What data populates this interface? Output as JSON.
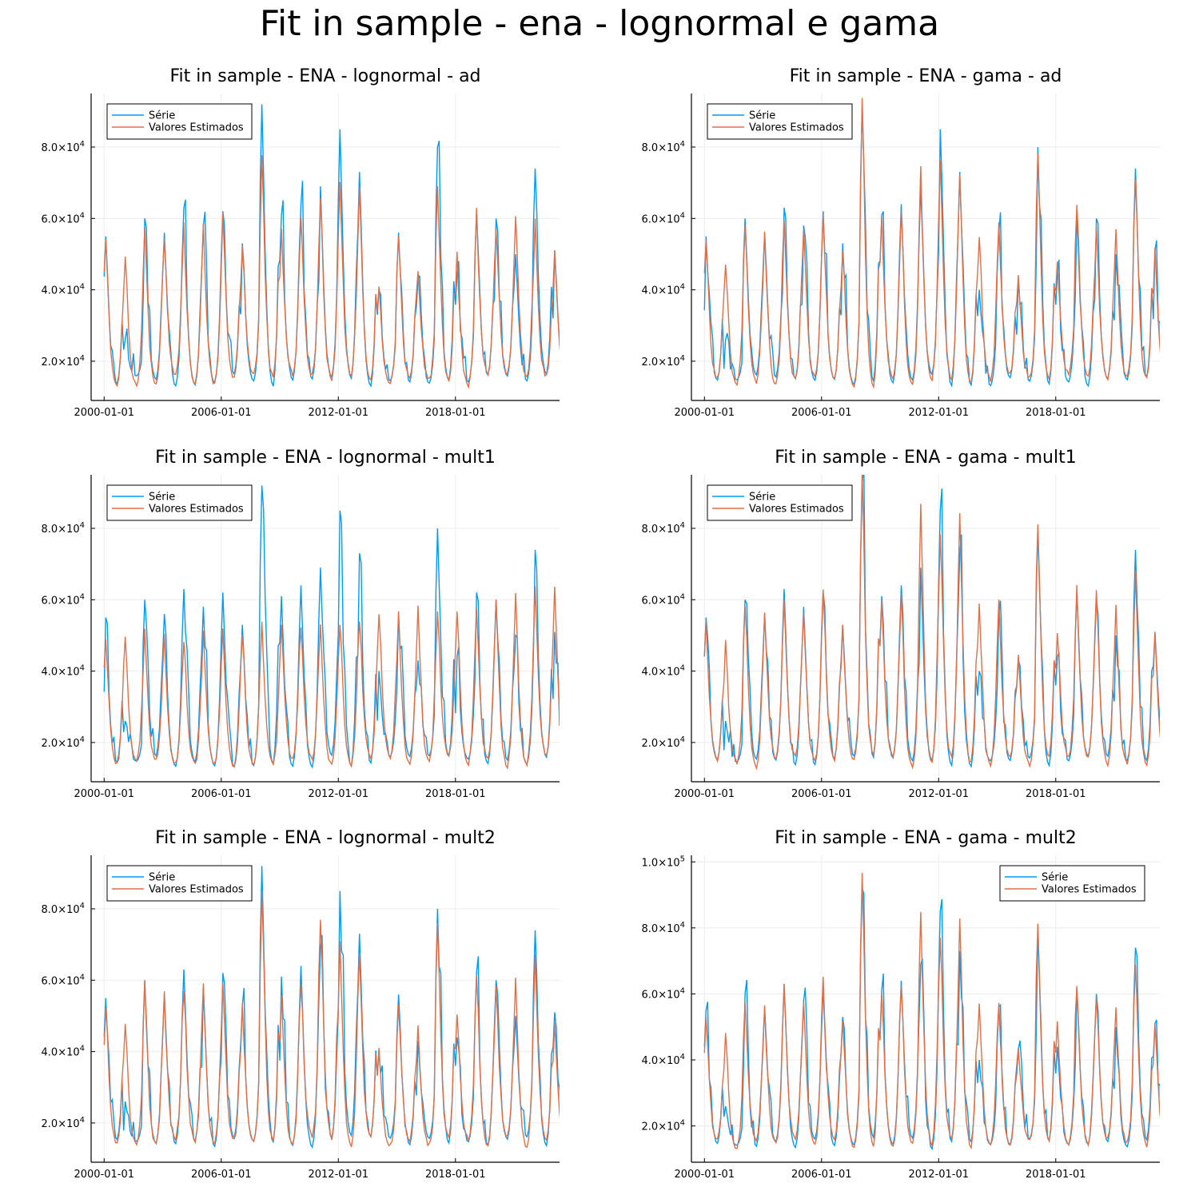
{
  "figure": {
    "title": "Fit in sample - ena - lognormal e gama",
    "colors": {
      "serie": "#009af9",
      "estimados": "#e26f46",
      "grid": "#ececec",
      "axis": "#000000"
    }
  },
  "chart_data": [
    {
      "type": "line",
      "title": "Fit in sample - ENA - lognormal - ad",
      "x_ticks": [
        "2000-01-01",
        "2006-01-01",
        "2012-01-01",
        "2018-01-01"
      ],
      "y_ticks": [
        "2.0×10^4",
        "4.0×10^4",
        "6.0×10^4",
        "8.0×10^4"
      ],
      "ylim": [
        9000,
        95000
      ],
      "xlim": [
        "1999-05",
        "2023-05"
      ],
      "legend": {
        "position": "top-left",
        "entries": [
          "Série",
          "Valores Estimados"
        ]
      },
      "grid": true,
      "x_start": "2000-01",
      "x_freq": "monthly",
      "series": [
        {
          "name": "Série",
          "color": "#009af9",
          "peaks": [
            55000,
            26000,
            60000,
            56000,
            63000,
            58000,
            62000,
            53000,
            92000,
            61000,
            64000,
            69000,
            85000,
            73000,
            40000,
            56000,
            43000,
            80000,
            44000,
            62000,
            60000,
            50000,
            74000,
            51000,
            76000
          ]
        },
        {
          "name": "Valores Estimados",
          "color": "#e26f46",
          "peaks": [
            55000,
            48000,
            57000,
            55000,
            58000,
            57000,
            60000,
            52000,
            77000,
            56000,
            60000,
            68000,
            70000,
            68000,
            40000,
            55000,
            46000,
            70000,
            49000,
            61000,
            58000,
            60000,
            58000,
            50000,
            65000
          ]
        }
      ]
    },
    {
      "type": "line",
      "title": "Fit in sample - ENA - gama - ad",
      "x_ticks": [
        "2000-01-01",
        "2006-01-01",
        "2012-01-01",
        "2018-01-01"
      ],
      "y_ticks": [
        "2.0×10^4",
        "4.0×10^4",
        "6.0×10^4",
        "8.0×10^4"
      ],
      "ylim": [
        9000,
        95000
      ],
      "xlim": [
        "1999-05",
        "2023-05"
      ],
      "legend": {
        "position": "top-left",
        "entries": [
          "Série",
          "Valores Estimados"
        ]
      },
      "grid": true,
      "x_start": "2000-01",
      "x_freq": "monthly",
      "series": [
        {
          "name": "Série",
          "color": "#009af9",
          "peaks": [
            55000,
            26000,
            60000,
            56000,
            63000,
            58000,
            62000,
            53000,
            92000,
            61000,
            64000,
            69000,
            85000,
            73000,
            40000,
            56000,
            43000,
            80000,
            44000,
            62000,
            60000,
            50000,
            74000,
            51000,
            76000
          ]
        },
        {
          "name": "Valores Estimados",
          "color": "#e26f46",
          "peaks": [
            54000,
            47000,
            58000,
            55000,
            60000,
            57000,
            62000,
            52000,
            91000,
            60000,
            62000,
            72000,
            75000,
            72000,
            55000,
            57000,
            44000,
            79000,
            49000,
            64000,
            58000,
            57000,
            72000,
            50000,
            75000
          ]
        }
      ]
    },
    {
      "type": "line",
      "title": "Fit in sample - ENA - lognormal - mult1",
      "x_ticks": [
        "2000-01-01",
        "2006-01-01",
        "2012-01-01",
        "2018-01-01"
      ],
      "y_ticks": [
        "2.0×10^4",
        "4.0×10^4",
        "6.0×10^4",
        "8.0×10^4"
      ],
      "ylim": [
        9000,
        95000
      ],
      "xlim": [
        "1999-05",
        "2023-05"
      ],
      "legend": {
        "position": "top-left",
        "entries": [
          "Série",
          "Valores Estimados"
        ]
      },
      "grid": true,
      "x_start": "2000-01",
      "x_freq": "monthly",
      "series": [
        {
          "name": "Série",
          "color": "#009af9",
          "peaks": [
            55000,
            26000,
            60000,
            56000,
            63000,
            58000,
            62000,
            53000,
            92000,
            61000,
            64000,
            69000,
            85000,
            73000,
            40000,
            56000,
            43000,
            80000,
            44000,
            62000,
            60000,
            50000,
            74000,
            51000,
            76000
          ]
        },
        {
          "name": "Valores Estimados",
          "color": "#e26f46",
          "peaks": [
            49000,
            50000,
            50000,
            50000,
            50000,
            50000,
            51000,
            52000,
            52000,
            53000,
            54000,
            54000,
            55000,
            55000,
            56000,
            56000,
            57000,
            58000,
            59000,
            59000,
            60000,
            61000,
            62000,
            63000,
            61000
          ]
        }
      ]
    },
    {
      "type": "line",
      "title": "Fit in sample - ENA - gama - mult1",
      "x_ticks": [
        "2000-01-01",
        "2006-01-01",
        "2012-01-01",
        "2018-01-01"
      ],
      "y_ticks": [
        "2.0×10^4",
        "4.0×10^4",
        "6.0×10^4",
        "8.0×10^4"
      ],
      "ylim": [
        9000,
        95000
      ],
      "xlim": [
        "1999-05",
        "2023-05"
      ],
      "legend": {
        "position": "top-left",
        "entries": [
          "Série",
          "Valores Estimados"
        ]
      },
      "grid": true,
      "x_start": "2000-01",
      "x_freq": "monthly",
      "series": [
        {
          "name": "Série",
          "color": "#009af9",
          "peaks": [
            55000,
            26000,
            60000,
            56000,
            63000,
            58000,
            62000,
            53000,
            92000,
            61000,
            64000,
            69000,
            85000,
            73000,
            40000,
            56000,
            43000,
            80000,
            44000,
            62000,
            60000,
            50000,
            74000,
            51000,
            76000
          ]
        },
        {
          "name": "Valores Estimados",
          "color": "#e26f46",
          "peaks": [
            54000,
            47000,
            59000,
            55000,
            61000,
            56000,
            64000,
            53000,
            93000,
            60000,
            62000,
            84000,
            79000,
            84000,
            59000,
            58000,
            44000,
            82000,
            52000,
            62000,
            62000,
            57000,
            67000,
            49000,
            75000
          ]
        }
      ]
    },
    {
      "type": "line",
      "title": "Fit in sample - ENA - lognormal - mult2",
      "x_ticks": [
        "2000-01-01",
        "2006-01-01",
        "2012-01-01",
        "2018-01-01"
      ],
      "y_ticks": [
        "2.0×10^4",
        "4.0×10^4",
        "6.0×10^4",
        "8.0×10^4"
      ],
      "ylim": [
        9000,
        95000
      ],
      "xlim": [
        "1999-05",
        "2023-05"
      ],
      "legend": {
        "position": "top-left",
        "entries": [
          "Série",
          "Valores Estimados"
        ]
      },
      "grid": true,
      "x_start": "2000-01",
      "x_freq": "monthly",
      "series": [
        {
          "name": "Série",
          "color": "#009af9",
          "peaks": [
            55000,
            26000,
            60000,
            56000,
            63000,
            58000,
            62000,
            53000,
            92000,
            61000,
            64000,
            69000,
            85000,
            73000,
            40000,
            56000,
            43000,
            80000,
            44000,
            62000,
            60000,
            50000,
            74000,
            51000,
            76000
          ]
        },
        {
          "name": "Valores Estimados",
          "color": "#e26f46",
          "peaks": [
            54000,
            48000,
            58000,
            55000,
            59000,
            57000,
            60000,
            52000,
            84000,
            56000,
            60000,
            80000,
            69000,
            68000,
            40000,
            54000,
            46000,
            76000,
            52000,
            62000,
            58000,
            59000,
            65000,
            48000,
            68000
          ]
        }
      ]
    },
    {
      "type": "line",
      "title": "Fit in sample - ENA - gama - mult2",
      "x_ticks": [
        "2000-01-01",
        "2006-01-01",
        "2012-01-01",
        "2018-01-01"
      ],
      "y_ticks": [
        "2.0×10^4",
        "4.0×10^4",
        "6.0×10^4",
        "8.0×10^4",
        "1.0×10^5"
      ],
      "ylim": [
        9000,
        102000
      ],
      "xlim": [
        "1999-05",
        "2023-05"
      ],
      "legend": {
        "position": "top-right",
        "entries": [
          "Série",
          "Valores Estimados"
        ]
      },
      "grid": true,
      "x_start": "2000-01",
      "x_freq": "monthly",
      "series": [
        {
          "name": "Série",
          "color": "#009af9",
          "peaks": [
            55000,
            26000,
            60000,
            56000,
            63000,
            58000,
            62000,
            53000,
            92000,
            61000,
            64000,
            69000,
            85000,
            73000,
            40000,
            56000,
            43000,
            80000,
            44000,
            62000,
            60000,
            50000,
            74000,
            51000,
            76000
          ]
        },
        {
          "name": "Valores Estimados",
          "color": "#e26f46",
          "peaks": [
            54000,
            48000,
            59000,
            55000,
            62000,
            57000,
            65000,
            53000,
            99000,
            60000,
            63000,
            83000,
            78000,
            82000,
            58000,
            58000,
            45000,
            84000,
            52000,
            65000,
            60000,
            57000,
            70000,
            49000,
            76000
          ]
        }
      ]
    }
  ]
}
